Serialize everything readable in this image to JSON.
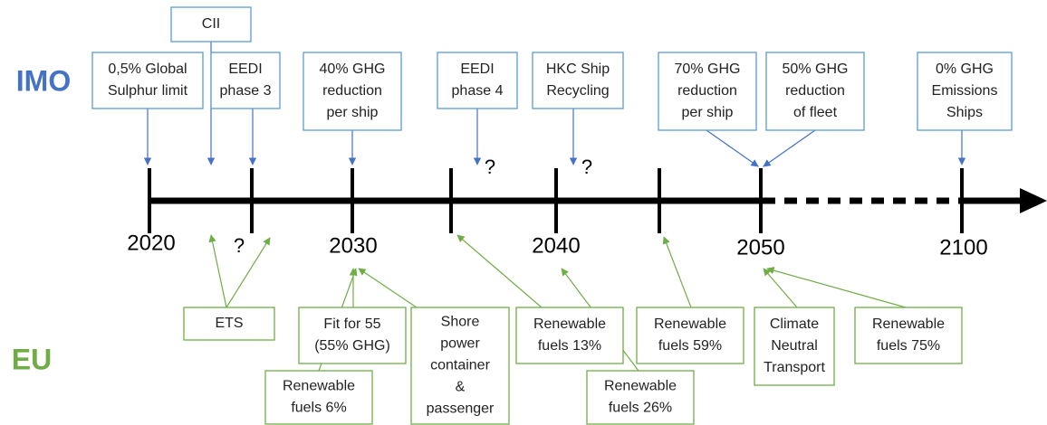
{
  "sides": {
    "top": "IMO",
    "bottom": "EU"
  },
  "years": [
    "2020",
    "2030",
    "2040",
    "2050",
    "2100"
  ],
  "question_marks": [
    "?",
    "?",
    "?"
  ],
  "imo_boxes": [
    {
      "lines": [
        "CII"
      ]
    },
    {
      "lines": [
        "0,5% Global",
        "Sulphur limit"
      ]
    },
    {
      "lines": [
        "EEDI",
        "phase 3"
      ]
    },
    {
      "lines": [
        "40% GHG",
        "reduction",
        "per ship"
      ]
    },
    {
      "lines": [
        "EEDI",
        "phase 4"
      ]
    },
    {
      "lines": [
        "HKC Ship",
        "Recycling"
      ]
    },
    {
      "lines": [
        "70% GHG",
        "reduction",
        "per ship"
      ]
    },
    {
      "lines": [
        "50% GHG",
        "reduction",
        "of fleet"
      ]
    },
    {
      "lines": [
        "0% GHG",
        "Emissions",
        "Ships"
      ]
    }
  ],
  "eu_boxes": [
    {
      "lines": [
        "ETS"
      ]
    },
    {
      "lines": [
        "Fit for 55",
        "(55% GHG)"
      ]
    },
    {
      "lines": [
        "Shore",
        "power",
        "container",
        "&",
        "passenger"
      ]
    },
    {
      "lines": [
        "Renewable",
        "fuels 6%"
      ]
    },
    {
      "lines": [
        "Renewable",
        "fuels 13%"
      ]
    },
    {
      "lines": [
        "Renewable",
        "fuels 26%"
      ]
    },
    {
      "lines": [
        "Renewable",
        "fuels 59%"
      ]
    },
    {
      "lines": [
        "Climate",
        "Neutral",
        "Transport"
      ]
    },
    {
      "lines": [
        "Renewable",
        "fuels 75%"
      ]
    }
  ]
}
